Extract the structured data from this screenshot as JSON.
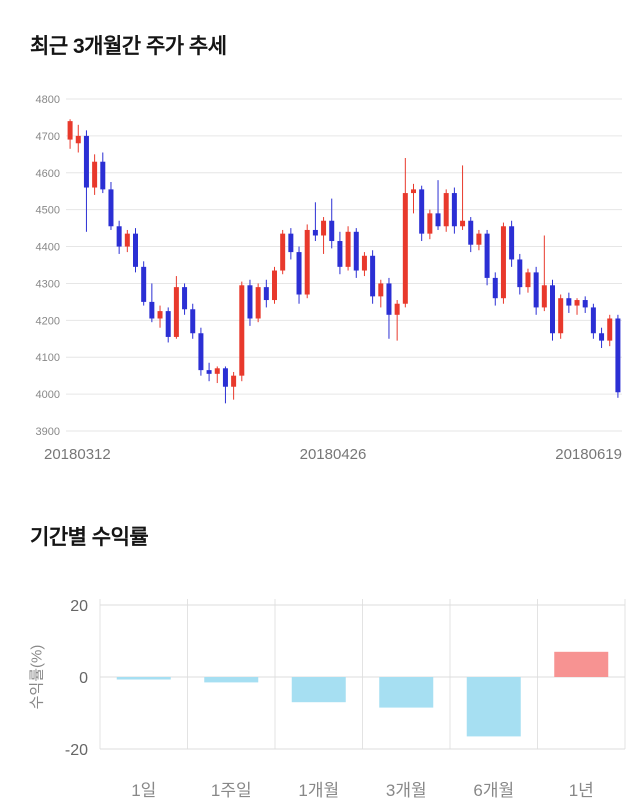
{
  "chart_data": [
    {
      "type": "candlestick",
      "title": "최근 3개월간 주가 추세",
      "ylim": [
        3900,
        4800
      ],
      "y_ticks": [
        3900,
        4000,
        4100,
        4200,
        4300,
        4400,
        4500,
        4600,
        4700,
        4800
      ],
      "x_tick_labels": [
        "20180312",
        "20180426",
        "20180619"
      ],
      "up_color": "#e8392c",
      "down_color": "#2b2fd4",
      "grid": true,
      "legend_position": "none",
      "candles_ohlc": [
        [
          4690,
          4745,
          4665,
          4740
        ],
        [
          4680,
          4730,
          4655,
          4700
        ],
        [
          4700,
          4715,
          4440,
          4560
        ],
        [
          4560,
          4650,
          4540,
          4630
        ],
        [
          4630,
          4655,
          4545,
          4555
        ],
        [
          4555,
          4575,
          4445,
          4455
        ],
        [
          4455,
          4470,
          4380,
          4400
        ],
        [
          4400,
          4445,
          4385,
          4435
        ],
        [
          4435,
          4450,
          4330,
          4345
        ],
        [
          4345,
          4360,
          4240,
          4250
        ],
        [
          4250,
          4300,
          4195,
          4205
        ],
        [
          4205,
          4240,
          4180,
          4225
        ],
        [
          4225,
          4235,
          4140,
          4155
        ],
        [
          4155,
          4320,
          4150,
          4290
        ],
        [
          4290,
          4300,
          4215,
          4230
        ],
        [
          4230,
          4245,
          4150,
          4165
        ],
        [
          4165,
          4180,
          4050,
          4065
        ],
        [
          4065,
          4085,
          4035,
          4055
        ],
        [
          4055,
          4075,
          4030,
          4070
        ],
        [
          4070,
          4075,
          3975,
          4020
        ],
        [
          4020,
          4060,
          3985,
          4050
        ],
        [
          4050,
          4305,
          4035,
          4295
        ],
        [
          4295,
          4310,
          4185,
          4205
        ],
        [
          4205,
          4300,
          4195,
          4290
        ],
        [
          4290,
          4310,
          4235,
          4255
        ],
        [
          4255,
          4345,
          4245,
          4335
        ],
        [
          4335,
          4445,
          4325,
          4435
        ],
        [
          4435,
          4450,
          4365,
          4385
        ],
        [
          4385,
          4400,
          4245,
          4270
        ],
        [
          4270,
          4460,
          4260,
          4445
        ],
        [
          4445,
          4520,
          4415,
          4430
        ],
        [
          4430,
          4480,
          4380,
          4470
        ],
        [
          4470,
          4530,
          4395,
          4415
        ],
        [
          4415,
          4440,
          4325,
          4345
        ],
        [
          4345,
          4455,
          4335,
          4440
        ],
        [
          4440,
          4450,
          4315,
          4335
        ],
        [
          4335,
          4385,
          4320,
          4375
        ],
        [
          4375,
          4390,
          4245,
          4265
        ],
        [
          4265,
          4310,
          4235,
          4300
        ],
        [
          4300,
          4315,
          4150,
          4215
        ],
        [
          4215,
          4255,
          4145,
          4245
        ],
        [
          4245,
          4640,
          4235,
          4545
        ],
        [
          4545,
          4570,
          4490,
          4555
        ],
        [
          4555,
          4565,
          4415,
          4435
        ],
        [
          4435,
          4500,
          4420,
          4490
        ],
        [
          4490,
          4580,
          4445,
          4455
        ],
        [
          4455,
          4555,
          4440,
          4545
        ],
        [
          4545,
          4560,
          4435,
          4455
        ],
        [
          4455,
          4620,
          4445,
          4470
        ],
        [
          4470,
          4480,
          4385,
          4405
        ],
        [
          4405,
          4445,
          4390,
          4435
        ],
        [
          4435,
          4445,
          4295,
          4315
        ],
        [
          4315,
          4330,
          4240,
          4260
        ],
        [
          4260,
          4465,
          4245,
          4455
        ],
        [
          4455,
          4470,
          4345,
          4365
        ],
        [
          4365,
          4380,
          4270,
          4290
        ],
        [
          4290,
          4340,
          4275,
          4330
        ],
        [
          4330,
          4345,
          4215,
          4235
        ],
        [
          4235,
          4430,
          4225,
          4295
        ],
        [
          4295,
          4310,
          4145,
          4165
        ],
        [
          4165,
          4270,
          4150,
          4260
        ],
        [
          4260,
          4275,
          4220,
          4240
        ],
        [
          4240,
          4260,
          4215,
          4255
        ],
        [
          4255,
          4265,
          4220,
          4235
        ],
        [
          4235,
          4245,
          4150,
          4165
        ],
        [
          4165,
          4180,
          4125,
          4145
        ],
        [
          4145,
          4215,
          4130,
          4205
        ],
        [
          4205,
          4215,
          3990,
          4005
        ]
      ]
    },
    {
      "type": "bar",
      "title": "기간별 수익률",
      "ylabel": "수익률(%)",
      "categories": [
        "1일",
        "1주일",
        "1개월",
        "3개월",
        "6개월",
        "1년"
      ],
      "values": [
        -0.7,
        -1.5,
        -7,
        -8.5,
        -16.5,
        7
      ],
      "ylim": [
        -20,
        20
      ],
      "y_ticks": [
        20,
        0,
        -20
      ],
      "positive_color": "#f79392",
      "negative_color": "#a6dff2",
      "grid": true,
      "legend_position": "none"
    }
  ]
}
